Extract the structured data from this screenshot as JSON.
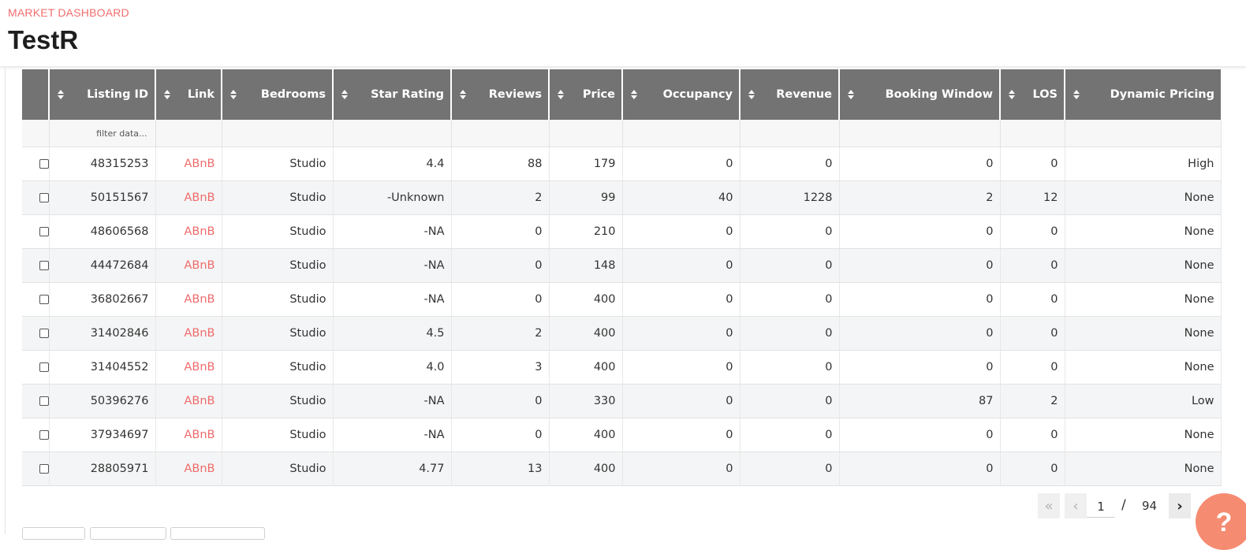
{
  "header": {
    "eyebrow": "MARKET DASHBOARD",
    "title": "TestR"
  },
  "table": {
    "columns": [
      "Listing ID",
      "Link",
      "Bedrooms",
      "Star Rating",
      "Reviews",
      "Price",
      "Occupancy",
      "Revenue",
      "Booking Window",
      "LOS",
      "Dynamic Pricing"
    ],
    "filter_placeholder": "filter data...",
    "rows": [
      [
        "48315253",
        "ABnB",
        "Studio",
        "4.4",
        "88",
        "179",
        "0",
        "0",
        "0",
        "0",
        "High"
      ],
      [
        "50151567",
        "ABnB",
        "Studio",
        "-Unknown",
        "2",
        "99",
        "40",
        "1228",
        "2",
        "12",
        "None"
      ],
      [
        "48606568",
        "ABnB",
        "Studio",
        "-NA",
        "0",
        "210",
        "0",
        "0",
        "0",
        "0",
        "None"
      ],
      [
        "44472684",
        "ABnB",
        "Studio",
        "-NA",
        "0",
        "148",
        "0",
        "0",
        "0",
        "0",
        "None"
      ],
      [
        "36802667",
        "ABnB",
        "Studio",
        "-NA",
        "0",
        "400",
        "0",
        "0",
        "0",
        "0",
        "None"
      ],
      [
        "31402846",
        "ABnB",
        "Studio",
        "4.5",
        "2",
        "400",
        "0",
        "0",
        "0",
        "0",
        "None"
      ],
      [
        "31404552",
        "ABnB",
        "Studio",
        "4.0",
        "3",
        "400",
        "0",
        "0",
        "0",
        "0",
        "None"
      ],
      [
        "50396276",
        "ABnB",
        "Studio",
        "-NA",
        "0",
        "330",
        "0",
        "0",
        "87",
        "2",
        "Low"
      ],
      [
        "37934697",
        "ABnB",
        "Studio",
        "-NA",
        "0",
        "400",
        "0",
        "0",
        "0",
        "0",
        "None"
      ],
      [
        "28805971",
        "ABnB",
        "Studio",
        "4.77",
        "13",
        "400",
        "0",
        "0",
        "0",
        "0",
        "None"
      ]
    ]
  },
  "pagination": {
    "current": "1",
    "separator": "/",
    "total": "94"
  },
  "help": {
    "label": "?"
  },
  "colors": {
    "accent": "#f26d6d",
    "header_bg": "#737373",
    "help_button": "#f58b71"
  },
  "icons": {
    "sort": "sort-arrows-icon",
    "first": "double-chevron-left-icon",
    "prev": "chevron-left-icon",
    "next": "chevron-right-icon"
  }
}
